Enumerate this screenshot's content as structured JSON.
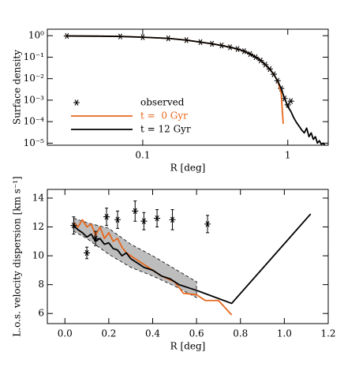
{
  "chart_data": [
    {
      "type": "line",
      "xlabel": "R [deg]",
      "ylabel": "Surface density",
      "xlog": true,
      "ylog": true,
      "xlim": [
        0.022,
        1.9
      ],
      "ylim": [
        8e-06,
        2
      ],
      "xticks": [
        0.1,
        1
      ],
      "yticks": [
        {
          "value": 1,
          "label": "10⁰"
        },
        {
          "value": 0.1,
          "label": "10⁻¹"
        },
        {
          "value": 0.01,
          "label": "10⁻²"
        },
        {
          "value": 0.001,
          "label": "10⁻³"
        },
        {
          "value": 0.0001,
          "label": "10⁻⁴"
        },
        {
          "value": 1e-05,
          "label": "10⁻⁵"
        }
      ],
      "legend": "lower left",
      "series": [
        {
          "name": "observed",
          "color": "#000000",
          "mode": "markers",
          "x": [
            0.03,
            0.07,
            0.1,
            0.15,
            0.2,
            0.25,
            0.3,
            0.35,
            0.4,
            0.45,
            0.5,
            0.55,
            0.6,
            0.65,
            0.7,
            0.75,
            0.8,
            0.85,
            0.9,
            0.95,
            1.0,
            1.05
          ],
          "values": [
            0.97,
            0.92,
            0.85,
            0.75,
            0.62,
            0.5,
            0.42,
            0.35,
            0.29,
            0.24,
            0.19,
            0.14,
            0.1,
            0.07,
            0.045,
            0.028,
            0.016,
            0.008,
            0.0035,
            0.0012,
            0.0006,
            0.0009
          ]
        },
        {
          "name": "t =  0 Gyr",
          "color": "#e8671c",
          "mode": "line",
          "x": [
            0.03,
            0.05,
            0.07,
            0.1,
            0.15,
            0.2,
            0.25,
            0.3,
            0.35,
            0.4,
            0.45,
            0.5,
            0.55,
            0.6,
            0.65,
            0.7,
            0.75,
            0.8,
            0.85,
            0.9,
            0.93
          ],
          "values": [
            0.97,
            0.95,
            0.92,
            0.85,
            0.75,
            0.62,
            0.5,
            0.42,
            0.35,
            0.29,
            0.24,
            0.19,
            0.14,
            0.1,
            0.07,
            0.045,
            0.028,
            0.016,
            0.008,
            0.0022,
            8e-05
          ]
        },
        {
          "name": "t = 12 Gyr",
          "color": "#000000",
          "mode": "line",
          "x": [
            0.03,
            0.05,
            0.07,
            0.1,
            0.15,
            0.2,
            0.25,
            0.3,
            0.35,
            0.4,
            0.45,
            0.5,
            0.55,
            0.6,
            0.65,
            0.7,
            0.75,
            0.8,
            0.85,
            0.9,
            0.95,
            1.0,
            1.05,
            1.1,
            1.15,
            1.2,
            1.25,
            1.3,
            1.35,
            1.4,
            1.45,
            1.5,
            1.55,
            1.6,
            1.65,
            1.7,
            1.75,
            1.8
          ],
          "values": [
            0.97,
            0.95,
            0.92,
            0.85,
            0.75,
            0.62,
            0.5,
            0.42,
            0.35,
            0.29,
            0.24,
            0.19,
            0.14,
            0.1,
            0.07,
            0.045,
            0.028,
            0.016,
            0.008,
            0.0035,
            0.0012,
            0.0005,
            0.0003,
            0.00015,
            9e-05,
            6e-05,
            4e-05,
            3e-05,
            5e-05,
            2e-05,
            3e-05,
            1.5e-05,
            2e-05,
            1e-05,
            1.3e-05,
            9e-06,
            1e-05,
            8e-06
          ]
        }
      ]
    },
    {
      "type": "line",
      "xlabel": "R [deg]",
      "ylabel": "L.o.s. velocity dispersion [km s⁻¹]",
      "xlim": [
        -0.08,
        1.2
      ],
      "ylim": [
        5.3,
        14.6
      ],
      "xticks": [
        {
          "value": 0,
          "label": "0.0"
        },
        0.2,
        0.4,
        0.6,
        0.8,
        {
          "value": 1,
          "label": "1.0"
        },
        1.2
      ],
      "yticks": [
        6,
        8,
        10,
        12,
        14
      ],
      "band": {
        "color": "#bdbdbd",
        "x": [
          0.04,
          0.1,
          0.2,
          0.3,
          0.4,
          0.5,
          0.6
        ],
        "upper": [
          12.6,
          12.3,
          11.9,
          10.8,
          10.0,
          9.1,
          8.2
        ],
        "lower": [
          11.7,
          11.2,
          10.1,
          9.2,
          8.6,
          7.9,
          7.1
        ]
      },
      "series": [
        {
          "color": "#e8671c",
          "mode": "line",
          "x": [
            0.04,
            0.06,
            0.08,
            0.1,
            0.12,
            0.14,
            0.16,
            0.18,
            0.2,
            0.22,
            0.24,
            0.26,
            0.28,
            0.3,
            0.32,
            0.36,
            0.4,
            0.44,
            0.5,
            0.54,
            0.6,
            0.64,
            0.7,
            0.76
          ],
          "values": [
            12.3,
            12.0,
            12.5,
            12.0,
            12.2,
            11.4,
            12.0,
            11.2,
            11.6,
            11.0,
            11.2,
            10.6,
            10.2,
            10.0,
            9.8,
            9.4,
            9.0,
            8.6,
            8.2,
            7.4,
            7.3,
            6.9,
            6.9,
            5.9
          ]
        },
        {
          "color": "#000000",
          "mode": "line",
          "x": [
            0.04,
            0.06,
            0.08,
            0.1,
            0.12,
            0.14,
            0.16,
            0.18,
            0.2,
            0.22,
            0.24,
            0.26,
            0.28,
            0.3,
            0.32,
            0.34,
            0.36,
            0.4,
            0.44,
            0.48,
            0.52,
            0.56,
            0.6,
            0.76,
            1.12
          ],
          "values": [
            12.1,
            11.8,
            11.6,
            11.3,
            11.5,
            11.0,
            11.2,
            10.8,
            10.9,
            10.5,
            10.4,
            10.0,
            10.2,
            9.8,
            9.6,
            9.4,
            9.2,
            9.0,
            8.6,
            8.4,
            8.0,
            7.8,
            7.6,
            6.7,
            12.9
          ]
        },
        {
          "color": "#000000",
          "mode": "markers",
          "x": [
            0.04,
            0.1,
            0.14,
            0.19,
            0.24,
            0.32,
            0.36,
            0.42,
            0.49,
            0.65
          ],
          "values": [
            12.1,
            10.2,
            11.2,
            12.7,
            12.5,
            13.1,
            12.4,
            12.6,
            12.5,
            12.2
          ],
          "errors": [
            0.6,
            0.4,
            0.5,
            0.6,
            0.6,
            0.7,
            0.6,
            0.6,
            0.7,
            0.6
          ]
        }
      ]
    }
  ]
}
